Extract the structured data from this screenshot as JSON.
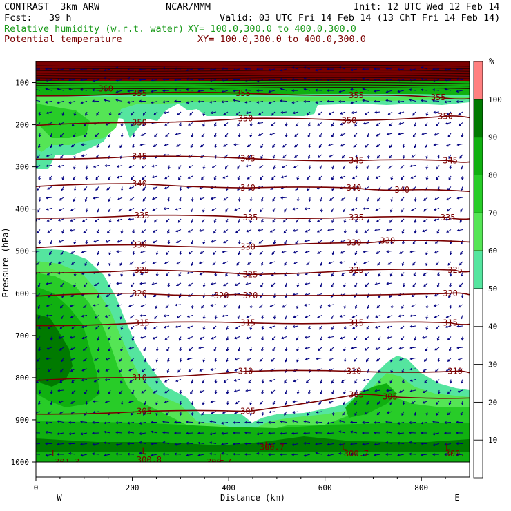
{
  "header": {
    "line1_left": "CONTRAST  3km ARW",
    "line1_center": "NCAR/MMM",
    "line1_right": "Init: 12 UTC Wed 12 Feb 14",
    "line2_left": "Fcst:   39 h",
    "line2_right": "Valid: 03 UTC Fri 14 Feb 14 (13 ChT Fri 14 Feb 14)",
    "field1_name": "Relative humidity (w.r.t. water)",
    "field1_xy": "XY= 100.0,300.0 to 400.0,300.0",
    "field2_name": "Potential temperature",
    "field2_xy": "XY= 100.0,300.0 to 400.0,300.0"
  },
  "colors": {
    "rh_50": "#55e59f",
    "rh_60": "#55e555",
    "rh_70": "#28cc28",
    "rh_80": "#10b010",
    "rh_90": "#007a00",
    "rh_100": "#7a0000",
    "rh_over": "#ff8080",
    "theta_line": "#7a0000",
    "wind_barb": "#000080"
  },
  "chart_data": {
    "type": "cross-section",
    "xlabel": "Distance (km)",
    "ylabel": "Pressure (hPa)",
    "xlim": [
      0,
      900
    ],
    "ylim": [
      1000,
      50
    ],
    "x_ticks": [
      0,
      200,
      400,
      600,
      800
    ],
    "y_ticks": [
      100,
      200,
      300,
      400,
      500,
      600,
      700,
      800,
      900,
      1000
    ],
    "x_end_labels": {
      "left": "W",
      "right": "E"
    },
    "colorbar": {
      "unit": "%",
      "levels": [
        10,
        20,
        30,
        40,
        50,
        60,
        70,
        80,
        90,
        100
      ]
    },
    "theta_contours": [
      {
        "value": "305",
        "labels": [
          {
            "x": 225,
            "p": 880
          },
          {
            "x": 440,
            "p": 880
          },
          {
            "x": 665,
            "p": 840
          },
          {
            "x": 735,
            "p": 845
          }
        ]
      },
      {
        "value": "310",
        "labels": [
          {
            "x": 215,
            "p": 800
          },
          {
            "x": 435,
            "p": 785
          },
          {
            "x": 660,
            "p": 785
          },
          {
            "x": 870,
            "p": 785
          }
        ]
      },
      {
        "value": "315",
        "labels": [
          {
            "x": 220,
            "p": 670
          },
          {
            "x": 440,
            "p": 670
          },
          {
            "x": 665,
            "p": 670
          },
          {
            "x": 860,
            "p": 670
          }
        ]
      },
      {
        "value": "320",
        "labels": [
          {
            "x": 215,
            "p": 600
          },
          {
            "x": 385,
            "p": 605
          },
          {
            "x": 445,
            "p": 605
          },
          {
            "x": 860,
            "p": 600
          }
        ]
      },
      {
        "value": "325",
        "labels": [
          {
            "x": 220,
            "p": 545
          },
          {
            "x": 445,
            "p": 555
          },
          {
            "x": 665,
            "p": 545
          },
          {
            "x": 870,
            "p": 545
          }
        ]
      },
      {
        "value": "330",
        "labels": [
          {
            "x": 215,
            "p": 485
          },
          {
            "x": 440,
            "p": 490
          },
          {
            "x": 660,
            "p": 480
          },
          {
            "x": 730,
            "p": 475
          }
        ]
      },
      {
        "value": "335",
        "labels": [
          {
            "x": 220,
            "p": 415
          },
          {
            "x": 445,
            "p": 420
          },
          {
            "x": 665,
            "p": 420
          },
          {
            "x": 855,
            "p": 420
          }
        ]
      },
      {
        "value": "340",
        "labels": [
          {
            "x": 215,
            "p": 340
          },
          {
            "x": 440,
            "p": 350
          },
          {
            "x": 660,
            "p": 350
          },
          {
            "x": 760,
            "p": 355
          }
        ]
      },
      {
        "value": "345",
        "labels": [
          {
            "x": 215,
            "p": 275
          },
          {
            "x": 440,
            "p": 280
          },
          {
            "x": 665,
            "p": 285
          },
          {
            "x": 860,
            "p": 285
          }
        ]
      },
      {
        "value": "350",
        "labels": [
          {
            "x": 215,
            "p": 195
          },
          {
            "x": 435,
            "p": 185
          },
          {
            "x": 650,
            "p": 190
          },
          {
            "x": 850,
            "p": 180
          }
        ]
      },
      {
        "value": "355",
        "labels": [
          {
            "x": 215,
            "p": 125
          },
          {
            "x": 430,
            "p": 125
          },
          {
            "x": 665,
            "p": 130
          },
          {
            "x": 835,
            "p": 135
          }
        ]
      },
      {
        "value": "360",
        "labels": [
          {
            "x": 145,
            "p": 115
          }
        ]
      },
      {
        "value": "300.7",
        "labels": [
          {
            "x": 490,
            "p": 965
          },
          {
            "x": 665,
            "p": 980
          }
        ]
      },
      {
        "value": "301.3",
        "labels": [
          {
            "x": 65,
            "p": 1000
          }
        ]
      },
      {
        "value": "300.8",
        "labels": [
          {
            "x": 235,
            "p": 995
          }
        ]
      },
      {
        "value": "300.7",
        "labels": [
          {
            "x": 380,
            "p": 1000
          }
        ]
      },
      {
        "value": "300.",
        "labels": [
          {
            "x": 870,
            "p": 980
          }
        ]
      }
    ],
    "low_markers": [
      {
        "label": "L",
        "x": 38,
        "p": 980
      },
      {
        "label": "L",
        "x": 225,
        "p": 975
      },
      {
        "label": "L",
        "x": 385,
        "p": 990
      },
      {
        "label": "L",
        "x": 480,
        "p": 960
      },
      {
        "label": "L",
        "x": 640,
        "p": 965
      },
      {
        "label": "L",
        "x": 855,
        "p": 965
      }
    ]
  }
}
